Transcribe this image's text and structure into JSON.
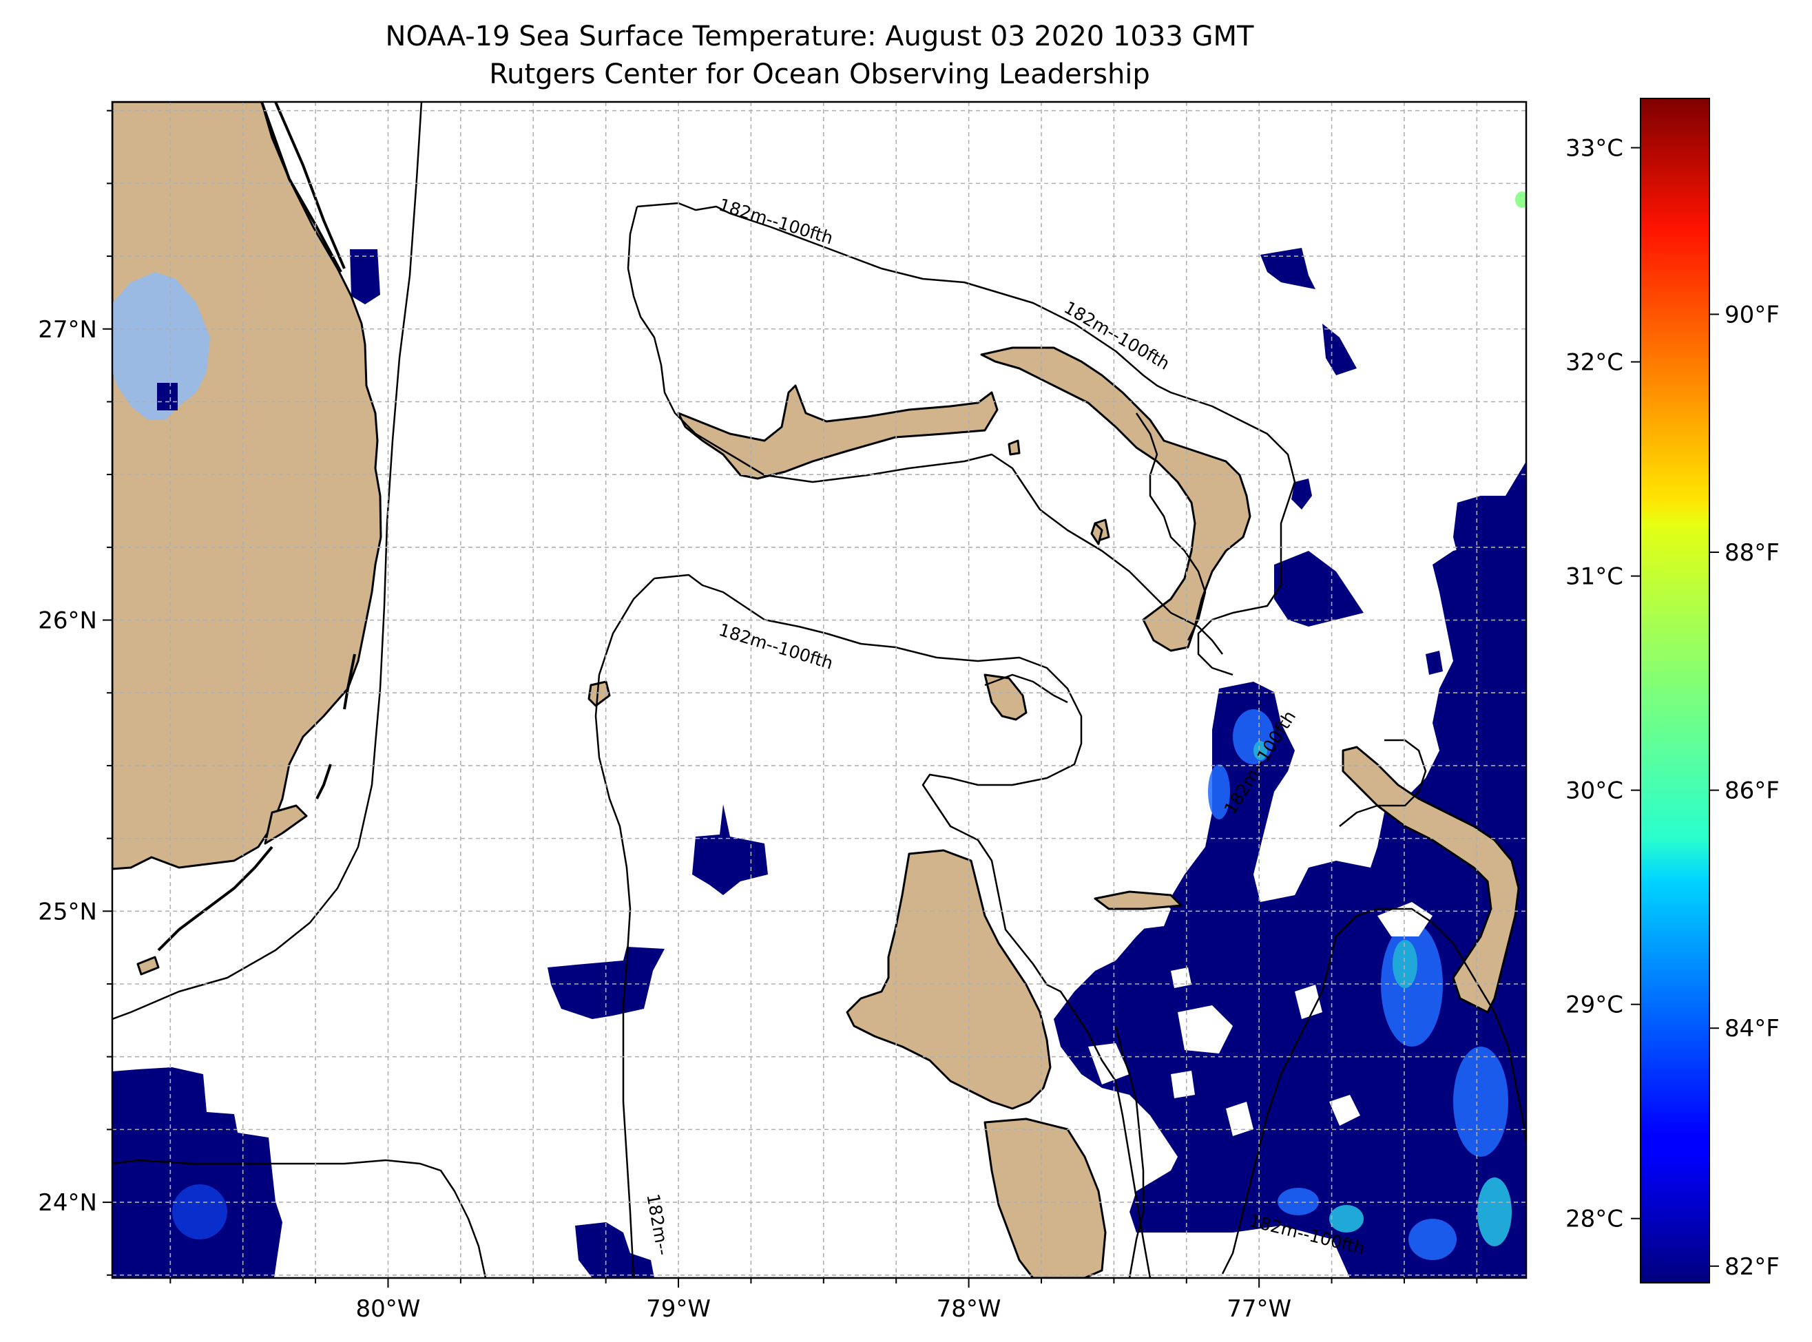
{
  "title": {
    "line1": "NOAA-19 Sea Surface Temperature: August 03 2020 1033 GMT",
    "line2": "Rutgers Center for Ocean Observing Leadership"
  },
  "map": {
    "extent": {
      "lon_min": -80.95,
      "lon_max": -76.08,
      "lat_min": 23.74,
      "lat_max": 27.78
    },
    "lon_ticks": [
      {
        "value": -80,
        "label": "80°W"
      },
      {
        "value": -79,
        "label": "79°W"
      },
      {
        "value": -78,
        "label": "78°W"
      },
      {
        "value": -77,
        "label": "77°W"
      }
    ],
    "lat_ticks": [
      {
        "value": 24,
        "label": "24°N"
      },
      {
        "value": 25,
        "label": "25°N"
      },
      {
        "value": 26,
        "label": "26°N"
      },
      {
        "value": 27,
        "label": "27°N"
      }
    ],
    "minor_step_deg": 0.25,
    "gridlines": true,
    "contour_labels": [
      {
        "text": "182m--100fth",
        "lon": -78.67,
        "lat": 27.35,
        "angle": 17
      },
      {
        "text": "182m--100fth",
        "lon": -77.5,
        "lat": 26.96,
        "angle": 30
      },
      {
        "text": "182m--100fth",
        "lon": -78.67,
        "lat": 25.89,
        "angle": 17
      },
      {
        "text": "182m--100fth",
        "lon": -76.98,
        "lat": 25.5,
        "angle": -58
      },
      {
        "text": "182m--",
        "lon": -79.09,
        "lat": 23.92,
        "angle": 80
      },
      {
        "text": "182m--100fth",
        "lon": -76.84,
        "lat": 23.87,
        "angle": 14
      }
    ],
    "colors": {
      "land": "#d2b48c",
      "lake": "#9ab9e3",
      "contour": "#000000",
      "grid": "#b0b0b0",
      "sst_low": "#00007f"
    }
  },
  "colorbar": {
    "colormap": "jet",
    "celsius_min": 27.7,
    "celsius_max": 33.23,
    "celsius_ticks": [
      {
        "value": 28,
        "label": "28°C"
      },
      {
        "value": 29,
        "label": "29°C"
      },
      {
        "value": 30,
        "label": "30°C"
      },
      {
        "value": 31,
        "label": "31°C"
      },
      {
        "value": 32,
        "label": "32°C"
      },
      {
        "value": 33,
        "label": "33°C"
      }
    ],
    "fahrenheit_ticks": [
      {
        "value": 82,
        "label": "82°F"
      },
      {
        "value": 84,
        "label": "84°F"
      },
      {
        "value": 86,
        "label": "86°F"
      },
      {
        "value": 88,
        "label": "88°F"
      },
      {
        "value": 90,
        "label": "90°F"
      }
    ]
  }
}
